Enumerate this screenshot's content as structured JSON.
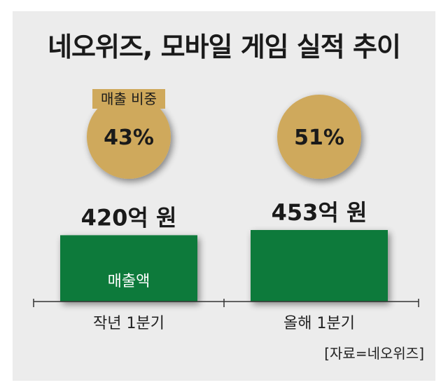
{
  "chart_data": {
    "type": "bar",
    "title": "네오위즈, 모바일 게임 실적 추이",
    "categories": [
      "작년 1분기",
      "올해 1분기"
    ],
    "values": [
      420,
      453
    ],
    "value_labels": [
      "420억 원",
      "453억 원"
    ],
    "bar_label": "매출액",
    "share_label": "매출 비중",
    "shares": [
      "43%",
      "51%"
    ],
    "source": "[자료=네오위즈]",
    "colors": {
      "bar": "#0f7a3a",
      "bubble": "#cfa95c",
      "background": "#ececec",
      "text": "#1a1a1a"
    }
  }
}
